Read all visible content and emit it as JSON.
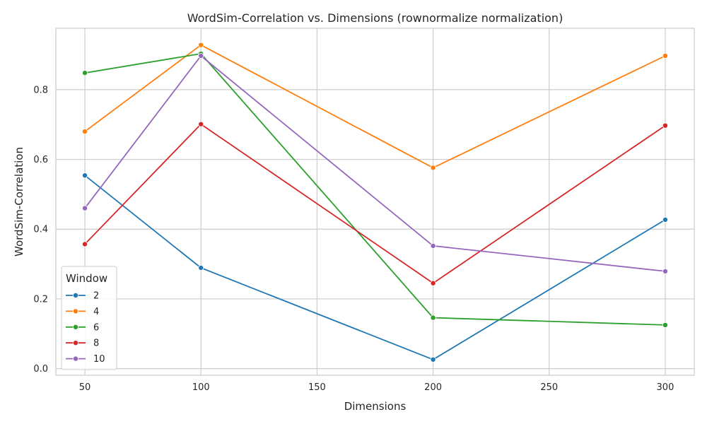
{
  "chart_data": {
    "type": "line",
    "title": "WordSim-Correlation vs. Dimensions (rownormalize normalization)",
    "xlabel": "Dimensions",
    "ylabel": "WordSim-Correlation",
    "x": [
      50,
      100,
      200,
      300
    ],
    "xlim": [
      37.5,
      312.5
    ],
    "ylim": [
      -0.019,
      0.976
    ],
    "xticks": [
      50,
      100,
      150,
      200,
      250,
      300
    ],
    "yticks": [
      0.0,
      0.2,
      0.4,
      0.6,
      0.8
    ],
    "ytick_labels": [
      "0.0",
      "0.2",
      "0.4",
      "0.6",
      "0.8"
    ],
    "grid": true,
    "legend": {
      "title": "Window",
      "placement": "lower-left"
    },
    "series": [
      {
        "name": "2",
        "color": "#1f77b4",
        "values": [
          0.554,
          0.289,
          0.026,
          0.427
        ]
      },
      {
        "name": "4",
        "color": "#ff7f0e",
        "values": [
          0.68,
          0.928,
          0.576,
          0.897
        ]
      },
      {
        "name": "6",
        "color": "#2ca02c",
        "values": [
          0.848,
          0.903,
          0.146,
          0.125
        ]
      },
      {
        "name": "8",
        "color": "#d62728",
        "values": [
          0.357,
          0.701,
          0.245,
          0.697
        ]
      },
      {
        "name": "10",
        "color": "#9467bd",
        "values": [
          0.46,
          0.897,
          0.352,
          0.279
        ]
      }
    ]
  }
}
